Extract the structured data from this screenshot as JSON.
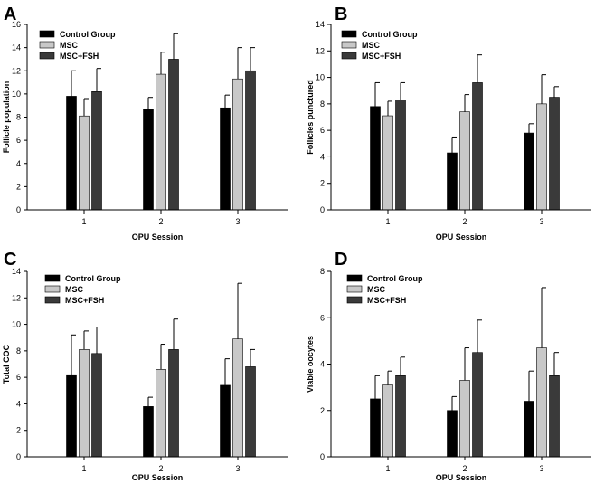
{
  "colors": {
    "control": "#000000",
    "msc": "#c8c8c8",
    "msc_fsh": "#3a3a3a",
    "axis": "#000000"
  },
  "chart_data": [
    {
      "panel": "A",
      "type": "bar",
      "xlabel": "OPU Session",
      "ylabel": "Follicle population",
      "categories": [
        "1",
        "2",
        "3"
      ],
      "ylim": [
        0,
        16
      ],
      "yticks": [
        0,
        2,
        4,
        6,
        8,
        10,
        12,
        14,
        16
      ],
      "legend": "top-left",
      "series": [
        {
          "name": "Control Group",
          "values": [
            9.8,
            8.7,
            8.8
          ],
          "errors": [
            2.2,
            1.0,
            1.1
          ]
        },
        {
          "name": "MSC",
          "values": [
            8.1,
            11.7,
            11.3
          ],
          "errors": [
            1.5,
            1.9,
            2.7
          ]
        },
        {
          "name": "MSC+FSH",
          "values": [
            10.2,
            13.0,
            12.0
          ],
          "errors": [
            2.0,
            2.2,
            2.0
          ]
        }
      ]
    },
    {
      "panel": "B",
      "type": "bar",
      "xlabel": "OPU Session",
      "ylabel": "Follicles punctured",
      "categories": [
        "1",
        "2",
        "3"
      ],
      "ylim": [
        0,
        14
      ],
      "yticks": [
        0,
        2,
        4,
        6,
        8,
        10,
        12,
        14
      ],
      "legend": "top-left",
      "series": [
        {
          "name": "Control Group",
          "values": [
            7.8,
            4.3,
            5.8
          ],
          "errors": [
            1.8,
            1.2,
            0.7
          ]
        },
        {
          "name": "MSC",
          "values": [
            7.1,
            7.4,
            8.0
          ],
          "errors": [
            1.1,
            1.3,
            2.2
          ]
        },
        {
          "name": "MSC+FSH",
          "values": [
            8.3,
            9.6,
            8.5
          ],
          "errors": [
            1.3,
            2.1,
            0.8
          ]
        }
      ]
    },
    {
      "panel": "C",
      "type": "bar",
      "xlabel": "OPU Session",
      "ylabel": "Total COC",
      "categories": [
        "1",
        "2",
        "3"
      ],
      "ylim": [
        0,
        14
      ],
      "yticks": [
        0,
        2,
        4,
        6,
        8,
        10,
        12,
        14
      ],
      "legend": "top-left",
      "series": [
        {
          "name": "Control Group",
          "values": [
            6.2,
            3.8,
            5.4
          ],
          "errors": [
            3.0,
            0.7,
            2.0
          ]
        },
        {
          "name": "MSC",
          "values": [
            8.1,
            6.6,
            8.9
          ],
          "errors": [
            1.4,
            1.9,
            4.2
          ]
        },
        {
          "name": "MSC+FSH",
          "values": [
            7.8,
            8.1,
            6.8
          ],
          "errors": [
            2.0,
            2.3,
            1.3
          ]
        }
      ]
    },
    {
      "panel": "D",
      "type": "bar",
      "xlabel": "OPU Session",
      "ylabel": "Viable oocytes",
      "categories": [
        "1",
        "2",
        "3"
      ],
      "ylim": [
        0,
        8
      ],
      "yticks": [
        0,
        2,
        4,
        6,
        8
      ],
      "legend": "top-left",
      "series": [
        {
          "name": "Control Group",
          "values": [
            2.5,
            2.0,
            2.4
          ],
          "errors": [
            1.0,
            0.6,
            1.3
          ]
        },
        {
          "name": "MSC",
          "values": [
            3.1,
            3.3,
            4.7
          ],
          "errors": [
            0.6,
            1.4,
            2.6
          ]
        },
        {
          "name": "MSC+FSH",
          "values": [
            3.5,
            4.5,
            3.5
          ],
          "errors": [
            0.8,
            1.4,
            1.0
          ]
        }
      ]
    }
  ]
}
